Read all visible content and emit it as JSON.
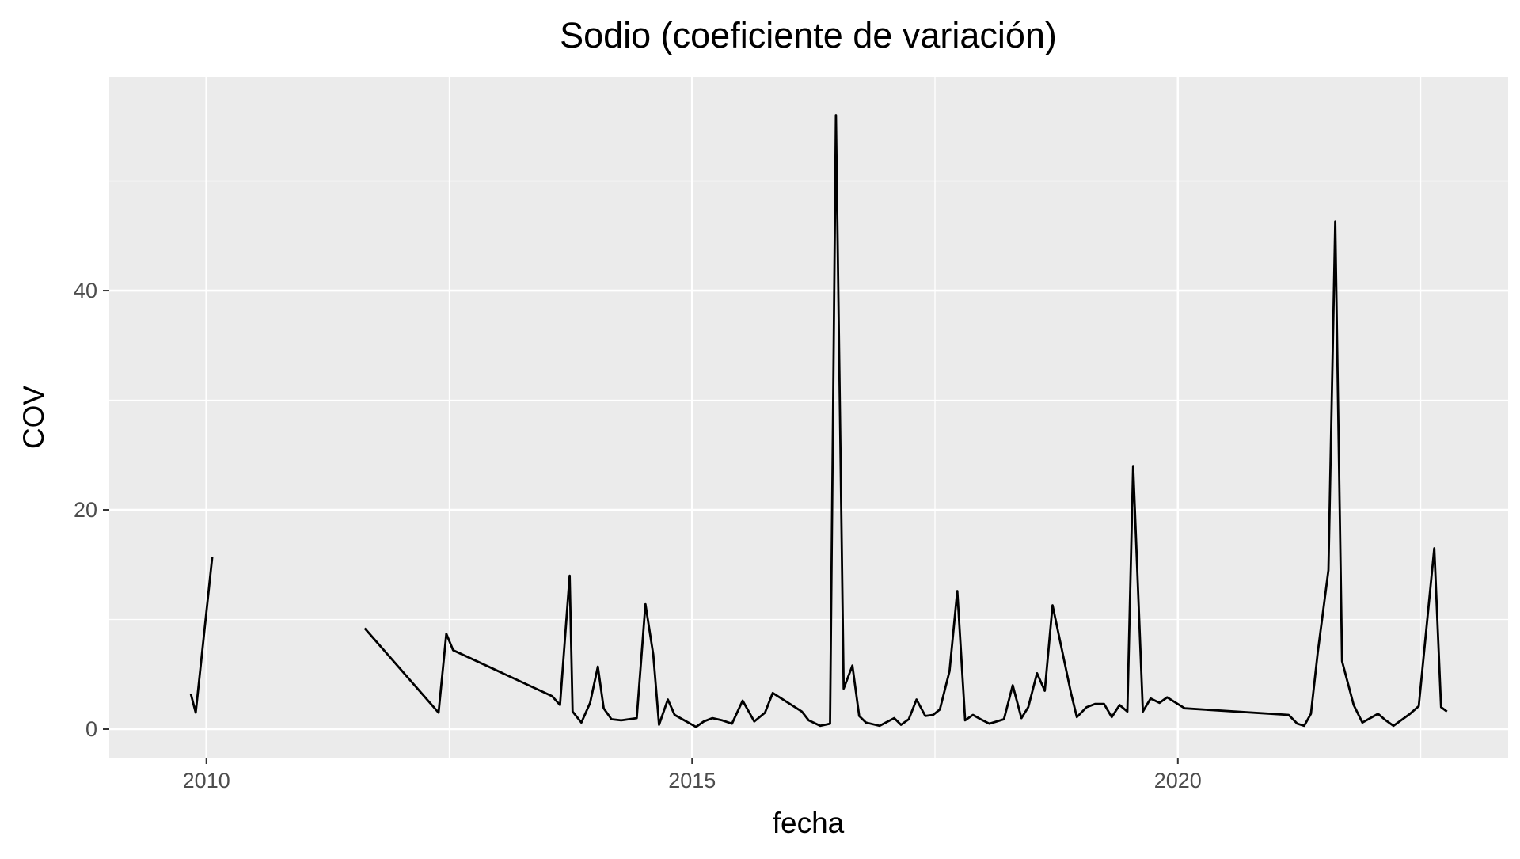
{
  "chart_data": {
    "type": "line",
    "title": "Sodio (coeficiente de variación)",
    "xlabel": "fecha",
    "ylabel": "COV",
    "xlim": [
      2009.0,
      2023.4
    ],
    "ylim": [
      -2.6,
      59.5
    ],
    "x_ticks": [
      {
        "value": 2010,
        "label": "2010"
      },
      {
        "value": 2015,
        "label": "2015"
      },
      {
        "value": 2020,
        "label": "2020"
      }
    ],
    "y_ticks": [
      {
        "value": 0,
        "label": "0"
      },
      {
        "value": 20,
        "label": "20"
      },
      {
        "value": 40,
        "label": "40"
      }
    ],
    "grid": true,
    "line_color": "#000000",
    "panel_color": "#ebebeb",
    "series": [
      {
        "segments": [
          [
            [
              2009.84,
              3.2
            ],
            [
              2009.89,
              1.5
            ],
            [
              2010.06,
              15.7
            ]
          ],
          [
            [
              2011.63,
              9.2
            ],
            [
              2012.39,
              1.5
            ],
            [
              2012.47,
              8.7
            ],
            [
              2012.54,
              7.2
            ],
            [
              2013.56,
              3.0
            ],
            [
              2013.64,
              2.2
            ],
            [
              2013.74,
              14.0
            ],
            [
              2013.77,
              1.6
            ],
            [
              2013.86,
              0.6
            ],
            [
              2013.95,
              2.4
            ],
            [
              2014.03,
              5.7
            ],
            [
              2014.09,
              1.9
            ],
            [
              2014.17,
              0.9
            ],
            [
              2014.27,
              0.8
            ],
            [
              2014.43,
              1.0
            ],
            [
              2014.52,
              11.4
            ],
            [
              2014.6,
              6.8
            ],
            [
              2014.66,
              0.4
            ],
            [
              2014.75,
              2.7
            ],
            [
              2014.82,
              1.3
            ],
            [
              2014.92,
              0.8
            ],
            [
              2015.04,
              0.2
            ],
            [
              2015.12,
              0.7
            ],
            [
              2015.21,
              1.0
            ],
            [
              2015.31,
              0.8
            ],
            [
              2015.41,
              0.5
            ],
            [
              2015.52,
              2.6
            ],
            [
              2015.64,
              0.7
            ],
            [
              2015.75,
              1.5
            ],
            [
              2015.83,
              3.3
            ],
            [
              2015.99,
              2.4
            ],
            [
              2016.13,
              1.6
            ],
            [
              2016.2,
              0.8
            ],
            [
              2016.32,
              0.3
            ],
            [
              2016.42,
              0.5
            ],
            [
              2016.48,
              56.0
            ],
            [
              2016.56,
              3.7
            ],
            [
              2016.65,
              5.8
            ],
            [
              2016.72,
              1.2
            ],
            [
              2016.79,
              0.6
            ],
            [
              2016.93,
              0.3
            ],
            [
              2017.08,
              1.0
            ],
            [
              2017.15,
              0.4
            ],
            [
              2017.23,
              0.9
            ],
            [
              2017.31,
              2.7
            ],
            [
              2017.4,
              1.2
            ],
            [
              2017.48,
              1.3
            ],
            [
              2017.55,
              1.8
            ],
            [
              2017.65,
              5.3
            ],
            [
              2017.73,
              12.6
            ],
            [
              2017.81,
              0.8
            ],
            [
              2017.89,
              1.3
            ],
            [
              2017.97,
              0.9
            ],
            [
              2018.06,
              0.5
            ],
            [
              2018.21,
              0.9
            ],
            [
              2018.3,
              4.0
            ],
            [
              2018.39,
              1.0
            ],
            [
              2018.46,
              2.0
            ],
            [
              2018.55,
              5.1
            ],
            [
              2018.63,
              3.5
            ],
            [
              2018.71,
              11.3
            ],
            [
              2018.9,
              3.3
            ],
            [
              2018.96,
              1.1
            ],
            [
              2019.06,
              2.0
            ],
            [
              2019.15,
              2.3
            ],
            [
              2019.24,
              2.3
            ],
            [
              2019.32,
              1.1
            ],
            [
              2019.4,
              2.2
            ],
            [
              2019.48,
              1.6
            ],
            [
              2019.54,
              24.0
            ],
            [
              2019.64,
              1.6
            ],
            [
              2019.72,
              2.8
            ],
            [
              2019.81,
              2.4
            ],
            [
              2019.89,
              2.9
            ],
            [
              2020.07,
              1.9
            ],
            [
              2021.14,
              1.3
            ],
            [
              2021.23,
              0.5
            ],
            [
              2021.3,
              0.3
            ],
            [
              2021.37,
              1.4
            ],
            [
              2021.44,
              7.0
            ],
            [
              2021.55,
              14.5
            ],
            [
              2021.62,
              46.3
            ],
            [
              2021.69,
              6.2
            ],
            [
              2021.81,
              2.2
            ],
            [
              2021.9,
              0.6
            ],
            [
              2021.98,
              1.0
            ],
            [
              2022.06,
              1.4
            ],
            [
              2022.14,
              0.8
            ],
            [
              2022.22,
              0.3
            ],
            [
              2022.39,
              1.4
            ],
            [
              2022.48,
              2.1
            ],
            [
              2022.64,
              16.5
            ],
            [
              2022.71,
              2.0
            ],
            [
              2022.77,
              1.6
            ]
          ]
        ]
      }
    ]
  }
}
